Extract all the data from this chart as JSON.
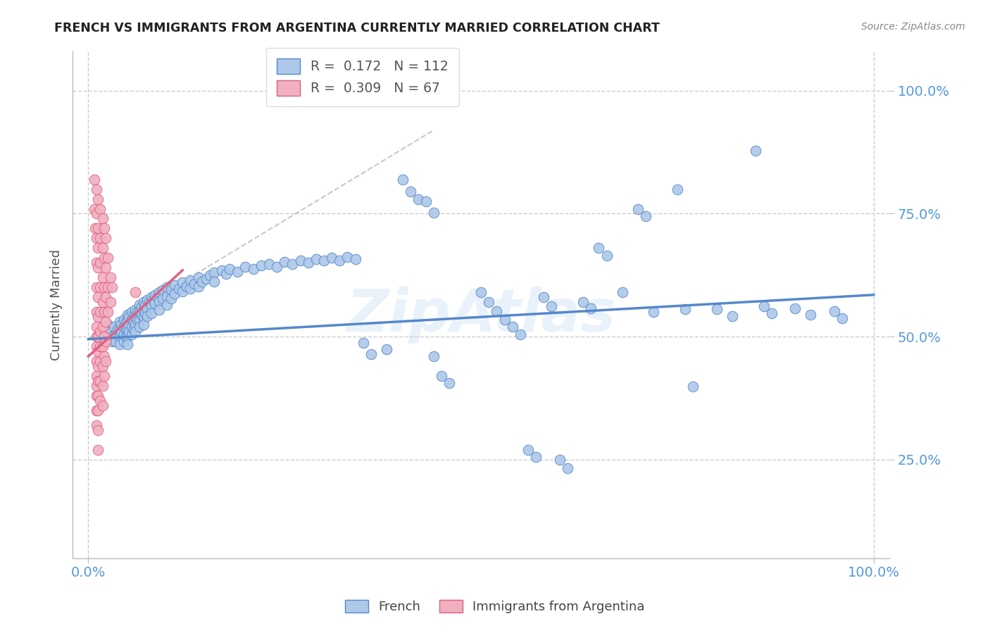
{
  "title": "FRENCH VS IMMIGRANTS FROM ARGENTINA CURRENTLY MARRIED CORRELATION CHART",
  "source": "Source: ZipAtlas.com",
  "ylabel": "Currently Married",
  "ytick_labels": [
    "100.0%",
    "75.0%",
    "50.0%",
    "25.0%"
  ],
  "ytick_values": [
    1.0,
    0.75,
    0.5,
    0.25
  ],
  "xtick_labels": [
    "0.0%",
    "100.0%"
  ],
  "xtick_values": [
    0.0,
    1.0
  ],
  "xlim": [
    -0.02,
    1.02
  ],
  "ylim": [
    0.05,
    1.08
  ],
  "watermark": "ZipAtlas",
  "legend": {
    "blue_R": "0.172",
    "blue_N": "112",
    "pink_R": "0.309",
    "pink_N": "67"
  },
  "blue_color": "#adc8e8",
  "blue_edge_color": "#5588cc",
  "pink_color": "#f0b0c0",
  "pink_edge_color": "#e06080",
  "dashed_line_color": "#ccbbcc",
  "grid_color": "#cccccc",
  "title_color": "#222222",
  "source_color": "#888888",
  "axis_tick_color": "#5599dd",
  "blue_trendline": [
    [
      0.0,
      0.495
    ],
    [
      1.0,
      0.585
    ]
  ],
  "pink_trendline": [
    [
      0.0,
      0.46
    ],
    [
      0.12,
      0.635
    ]
  ],
  "dashed_trendline": [
    [
      0.0,
      0.495
    ],
    [
      0.44,
      0.92
    ]
  ],
  "blue_scatter": [
    [
      0.025,
      0.525
    ],
    [
      0.028,
      0.51
    ],
    [
      0.03,
      0.5
    ],
    [
      0.03,
      0.49
    ],
    [
      0.033,
      0.52
    ],
    [
      0.035,
      0.505
    ],
    [
      0.035,
      0.49
    ],
    [
      0.037,
      0.515
    ],
    [
      0.04,
      0.53
    ],
    [
      0.04,
      0.515
    ],
    [
      0.04,
      0.5
    ],
    [
      0.04,
      0.485
    ],
    [
      0.042,
      0.525
    ],
    [
      0.042,
      0.51
    ],
    [
      0.045,
      0.535
    ],
    [
      0.045,
      0.52
    ],
    [
      0.045,
      0.505
    ],
    [
      0.045,
      0.49
    ],
    [
      0.048,
      0.53
    ],
    [
      0.048,
      0.515
    ],
    [
      0.048,
      0.5
    ],
    [
      0.05,
      0.545
    ],
    [
      0.05,
      0.53
    ],
    [
      0.05,
      0.515
    ],
    [
      0.05,
      0.5
    ],
    [
      0.05,
      0.485
    ],
    [
      0.052,
      0.54
    ],
    [
      0.052,
      0.525
    ],
    [
      0.052,
      0.51
    ],
    [
      0.055,
      0.55
    ],
    [
      0.055,
      0.535
    ],
    [
      0.055,
      0.52
    ],
    [
      0.055,
      0.505
    ],
    [
      0.058,
      0.545
    ],
    [
      0.058,
      0.53
    ],
    [
      0.058,
      0.515
    ],
    [
      0.06,
      0.555
    ],
    [
      0.06,
      0.54
    ],
    [
      0.06,
      0.525
    ],
    [
      0.06,
      0.51
    ],
    [
      0.062,
      0.55
    ],
    [
      0.062,
      0.535
    ],
    [
      0.065,
      0.565
    ],
    [
      0.065,
      0.55
    ],
    [
      0.065,
      0.535
    ],
    [
      0.065,
      0.52
    ],
    [
      0.068,
      0.56
    ],
    [
      0.068,
      0.545
    ],
    [
      0.07,
      0.57
    ],
    [
      0.07,
      0.555
    ],
    [
      0.07,
      0.54
    ],
    [
      0.07,
      0.525
    ],
    [
      0.072,
      0.565
    ],
    [
      0.072,
      0.548
    ],
    [
      0.075,
      0.575
    ],
    [
      0.075,
      0.558
    ],
    [
      0.075,
      0.542
    ],
    [
      0.078,
      0.57
    ],
    [
      0.08,
      0.58
    ],
    [
      0.08,
      0.562
    ],
    [
      0.08,
      0.548
    ],
    [
      0.082,
      0.575
    ],
    [
      0.085,
      0.585
    ],
    [
      0.085,
      0.568
    ],
    [
      0.088,
      0.58
    ],
    [
      0.09,
      0.59
    ],
    [
      0.09,
      0.572
    ],
    [
      0.09,
      0.555
    ],
    [
      0.095,
      0.595
    ],
    [
      0.095,
      0.578
    ],
    [
      0.1,
      0.6
    ],
    [
      0.1,
      0.582
    ],
    [
      0.1,
      0.565
    ],
    [
      0.105,
      0.595
    ],
    [
      0.105,
      0.578
    ],
    [
      0.11,
      0.605
    ],
    [
      0.11,
      0.588
    ],
    [
      0.115,
      0.598
    ],
    [
      0.12,
      0.61
    ],
    [
      0.12,
      0.592
    ],
    [
      0.125,
      0.602
    ],
    [
      0.13,
      0.615
    ],
    [
      0.13,
      0.598
    ],
    [
      0.135,
      0.608
    ],
    [
      0.14,
      0.62
    ],
    [
      0.14,
      0.602
    ],
    [
      0.145,
      0.612
    ],
    [
      0.15,
      0.618
    ],
    [
      0.155,
      0.625
    ],
    [
      0.16,
      0.63
    ],
    [
      0.16,
      0.612
    ],
    [
      0.17,
      0.635
    ],
    [
      0.175,
      0.628
    ],
    [
      0.18,
      0.638
    ],
    [
      0.19,
      0.632
    ],
    [
      0.2,
      0.642
    ],
    [
      0.21,
      0.638
    ],
    [
      0.22,
      0.645
    ],
    [
      0.23,
      0.648
    ],
    [
      0.24,
      0.642
    ],
    [
      0.25,
      0.652
    ],
    [
      0.26,
      0.648
    ],
    [
      0.27,
      0.655
    ],
    [
      0.28,
      0.65
    ],
    [
      0.29,
      0.658
    ],
    [
      0.3,
      0.655
    ],
    [
      0.31,
      0.66
    ],
    [
      0.32,
      0.655
    ],
    [
      0.33,
      0.662
    ],
    [
      0.34,
      0.658
    ],
    [
      0.35,
      0.488
    ],
    [
      0.36,
      0.465
    ],
    [
      0.38,
      0.475
    ],
    [
      0.4,
      0.82
    ],
    [
      0.41,
      0.795
    ],
    [
      0.42,
      0.78
    ],
    [
      0.43,
      0.775
    ],
    [
      0.44,
      0.752
    ],
    [
      0.44,
      0.46
    ],
    [
      0.45,
      0.42
    ],
    [
      0.46,
      0.406
    ],
    [
      0.5,
      0.59
    ],
    [
      0.51,
      0.57
    ],
    [
      0.52,
      0.552
    ],
    [
      0.53,
      0.535
    ],
    [
      0.54,
      0.52
    ],
    [
      0.55,
      0.505
    ],
    [
      0.56,
      0.27
    ],
    [
      0.57,
      0.255
    ],
    [
      0.58,
      0.58
    ],
    [
      0.59,
      0.562
    ],
    [
      0.6,
      0.25
    ],
    [
      0.61,
      0.232
    ],
    [
      0.63,
      0.57
    ],
    [
      0.64,
      0.558
    ],
    [
      0.65,
      0.68
    ],
    [
      0.66,
      0.665
    ],
    [
      0.68,
      0.59
    ],
    [
      0.7,
      0.76
    ],
    [
      0.71,
      0.745
    ],
    [
      0.72,
      0.55
    ],
    [
      0.75,
      0.8
    ],
    [
      0.76,
      0.556
    ],
    [
      0.77,
      0.398
    ],
    [
      0.8,
      0.556
    ],
    [
      0.82,
      0.542
    ],
    [
      0.85,
      0.878
    ],
    [
      0.86,
      0.562
    ],
    [
      0.87,
      0.548
    ],
    [
      0.9,
      0.558
    ],
    [
      0.92,
      0.545
    ],
    [
      0.95,
      0.552
    ],
    [
      0.96,
      0.538
    ]
  ],
  "pink_scatter": [
    [
      0.008,
      0.82
    ],
    [
      0.008,
      0.76
    ],
    [
      0.009,
      0.72
    ],
    [
      0.01,
      0.8
    ],
    [
      0.01,
      0.75
    ],
    [
      0.01,
      0.7
    ],
    [
      0.01,
      0.65
    ],
    [
      0.01,
      0.6
    ],
    [
      0.01,
      0.55
    ],
    [
      0.01,
      0.52
    ],
    [
      0.01,
      0.5
    ],
    [
      0.01,
      0.48
    ],
    [
      0.01,
      0.45
    ],
    [
      0.01,
      0.42
    ],
    [
      0.01,
      0.4
    ],
    [
      0.01,
      0.38
    ],
    [
      0.01,
      0.35
    ],
    [
      0.01,
      0.32
    ],
    [
      0.012,
      0.78
    ],
    [
      0.012,
      0.72
    ],
    [
      0.012,
      0.68
    ],
    [
      0.012,
      0.64
    ],
    [
      0.012,
      0.58
    ],
    [
      0.012,
      0.54
    ],
    [
      0.012,
      0.5
    ],
    [
      0.012,
      0.47
    ],
    [
      0.012,
      0.44
    ],
    [
      0.012,
      0.41
    ],
    [
      0.012,
      0.38
    ],
    [
      0.012,
      0.35
    ],
    [
      0.012,
      0.31
    ],
    [
      0.012,
      0.27
    ],
    [
      0.015,
      0.76
    ],
    [
      0.015,
      0.7
    ],
    [
      0.015,
      0.65
    ],
    [
      0.015,
      0.6
    ],
    [
      0.015,
      0.55
    ],
    [
      0.015,
      0.51
    ],
    [
      0.015,
      0.48
    ],
    [
      0.015,
      0.45
    ],
    [
      0.015,
      0.41
    ],
    [
      0.015,
      0.37
    ],
    [
      0.018,
      0.74
    ],
    [
      0.018,
      0.68
    ],
    [
      0.018,
      0.62
    ],
    [
      0.018,
      0.57
    ],
    [
      0.018,
      0.52
    ],
    [
      0.018,
      0.48
    ],
    [
      0.018,
      0.44
    ],
    [
      0.018,
      0.4
    ],
    [
      0.018,
      0.36
    ],
    [
      0.02,
      0.72
    ],
    [
      0.02,
      0.66
    ],
    [
      0.02,
      0.6
    ],
    [
      0.02,
      0.55
    ],
    [
      0.02,
      0.5
    ],
    [
      0.02,
      0.46
    ],
    [
      0.02,
      0.42
    ],
    [
      0.022,
      0.7
    ],
    [
      0.022,
      0.64
    ],
    [
      0.022,
      0.58
    ],
    [
      0.022,
      0.53
    ],
    [
      0.022,
      0.49
    ],
    [
      0.022,
      0.45
    ],
    [
      0.025,
      0.66
    ],
    [
      0.025,
      0.6
    ],
    [
      0.025,
      0.55
    ],
    [
      0.028,
      0.62
    ],
    [
      0.028,
      0.57
    ],
    [
      0.03,
      0.6
    ],
    [
      0.06,
      0.59
    ]
  ]
}
